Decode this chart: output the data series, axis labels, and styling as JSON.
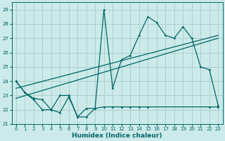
{
  "title": "",
  "xlabel": "Humidex (Indice chaleur)",
  "background_color": "#cceaea",
  "grid_color": "#aacccc",
  "line_color": "#006666",
  "xlim": [
    -0.5,
    23.5
  ],
  "ylim": [
    21,
    29.5
  ],
  "xticks": [
    0,
    1,
    2,
    3,
    4,
    5,
    6,
    7,
    8,
    9,
    10,
    11,
    12,
    13,
    14,
    15,
    16,
    17,
    18,
    19,
    20,
    21,
    22,
    23
  ],
  "yticks": [
    21,
    22,
    23,
    24,
    25,
    26,
    27,
    28,
    29
  ],
  "series1_x": [
    0,
    1,
    2,
    3,
    4,
    5,
    6,
    7,
    8,
    9,
    10,
    11,
    12,
    13,
    14,
    15,
    16,
    17,
    18,
    19,
    20,
    21,
    22,
    23
  ],
  "series1_y": [
    24.0,
    23.2,
    22.7,
    22.0,
    22.0,
    23.0,
    23.0,
    21.5,
    21.5,
    22.1,
    29.0,
    23.5,
    25.5,
    25.8,
    27.2,
    28.5,
    28.1,
    27.2,
    27.0,
    27.8,
    27.0,
    25.0,
    24.8,
    22.3
  ],
  "series2_x": [
    0,
    1,
    2,
    3,
    4,
    5,
    6,
    7,
    8,
    9,
    10,
    11,
    12,
    13,
    14,
    15,
    22,
    23
  ],
  "series2_y": [
    24.0,
    23.2,
    22.8,
    22.7,
    22.0,
    21.8,
    22.9,
    21.5,
    22.1,
    22.1,
    22.2,
    22.2,
    22.2,
    22.2,
    22.2,
    22.2,
    22.2,
    22.2
  ],
  "trend1_x": [
    0,
    23
  ],
  "trend1_y": [
    22.8,
    27.0
  ],
  "trend2_x": [
    0,
    23
  ],
  "trend2_y": [
    23.5,
    27.2
  ]
}
